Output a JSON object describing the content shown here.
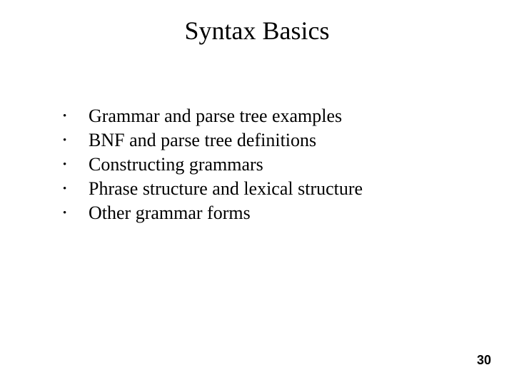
{
  "title": {
    "text": "Syntax Basics",
    "fontsize": 36,
    "color": "#000000"
  },
  "bullets": {
    "items": [
      "Grammar and parse tree examples",
      "BNF and parse tree definitions",
      "Constructing grammars",
      "Phrase structure and lexical structure",
      "Other grammar forms"
    ],
    "fontsize": 26,
    "color": "#000000",
    "marker": "•",
    "marker_fontsize": 15,
    "line_spacing": 4
  },
  "page_number": {
    "value": "30",
    "fontsize": 18,
    "color": "#000000"
  },
  "background_color": "#ffffff"
}
